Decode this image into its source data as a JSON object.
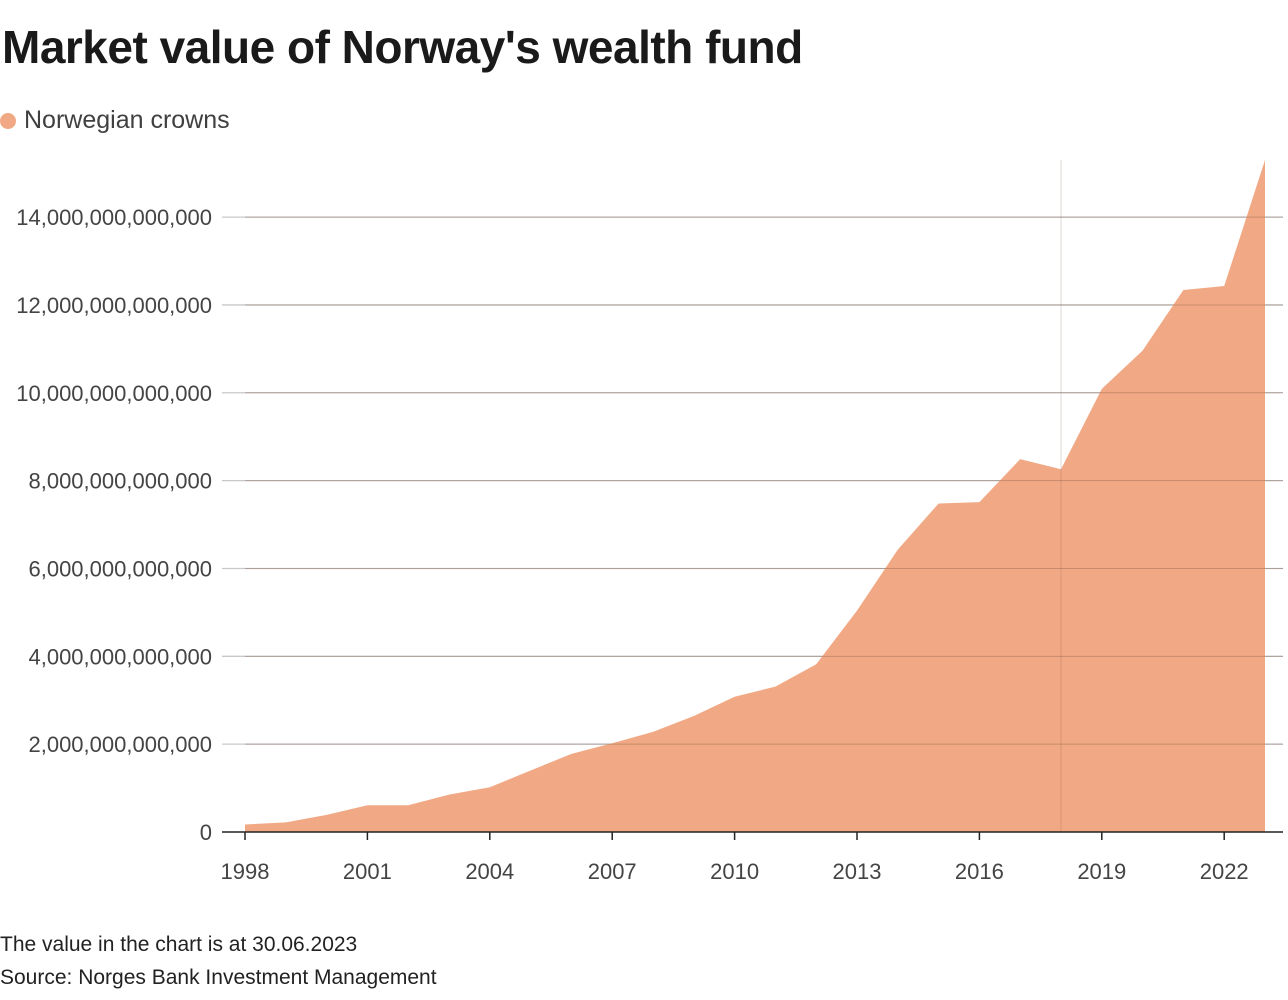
{
  "title": "Market value of Norway's wealth fund",
  "legend": [
    {
      "label": "Norwegian crowns",
      "color": "#f1a985"
    }
  ],
  "footnotes": {
    "note": "The value in the chart is at 30.06.2023",
    "source": "Source: Norges Bank Investment Management"
  },
  "chart_data": {
    "type": "area",
    "title": "Market value of Norway's wealth fund",
    "xlabel": "",
    "ylabel": "",
    "x": [
      1998,
      1999,
      2000,
      2001,
      2002,
      2003,
      2004,
      2005,
      2006,
      2007,
      2008,
      2009,
      2010,
      2011,
      2012,
      2013,
      2014,
      2015,
      2016,
      2017,
      2018,
      2019,
      2020,
      2021,
      2022,
      2023
    ],
    "series": [
      {
        "name": "Norwegian crowns",
        "color": "#f1a985",
        "values": [
          170000000000,
          220000000000,
          390000000000,
          610000000000,
          610000000000,
          850000000000,
          1020000000000,
          1400000000000,
          1780000000000,
          2020000000000,
          2280000000000,
          2640000000000,
          3080000000000,
          3310000000000,
          3820000000000,
          5040000000000,
          6430000000000,
          7480000000000,
          7510000000000,
          8490000000000,
          8260000000000,
          10090000000000,
          10960000000000,
          12340000000000,
          12430000000000,
          15300000000000
        ]
      }
    ],
    "xlim": [
      1998,
      2023
    ],
    "ylim": [
      0,
      15300000000000
    ],
    "xticks": [
      1998,
      2001,
      2004,
      2007,
      2010,
      2013,
      2016,
      2019,
      2022
    ],
    "yticks": [
      0,
      2000000000000,
      4000000000000,
      6000000000000,
      8000000000000,
      10000000000000,
      12000000000000,
      14000000000000
    ],
    "ytick_labels": [
      "0",
      "2,000,000,000,000",
      "4,000,000,000,000",
      "6,000,000,000,000",
      "8,000,000,000,000",
      "10,000,000,000,000",
      "12,000,000,000,000",
      "14,000,000,000,000"
    ],
    "grid": true,
    "legend_position": "top-left",
    "highlight_x": 2018
  }
}
